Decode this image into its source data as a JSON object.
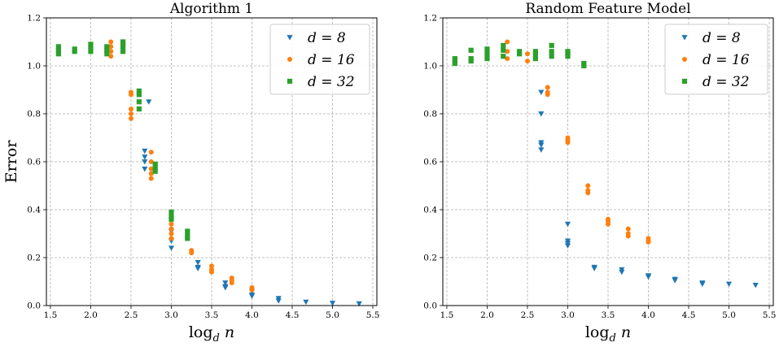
{
  "chart_data": [
    {
      "type": "scatter",
      "title": "Algorithm 1",
      "xlabel": "log_d n",
      "ylabel": "Error",
      "xlim": [
        1.45,
        5.55
      ],
      "ylim": [
        0.0,
        1.2
      ],
      "xticks": [
        "1.5",
        "2.0",
        "2.5",
        "3.0",
        "3.5",
        "4.0",
        "4.5",
        "5.0",
        "5.5"
      ],
      "yticks": [
        "0.0",
        "0.2",
        "0.4",
        "0.6",
        "0.8",
        "1.0",
        "1.2"
      ],
      "grid": true,
      "legend": "top-right",
      "series": [
        {
          "name": "d = 8",
          "legend_text": "d = 8",
          "color": "#1f77b4",
          "marker": "triangle-down",
          "points": [
            [
              2.67,
              0.645
            ],
            [
              2.67,
              0.62
            ],
            [
              2.67,
              0.6
            ],
            [
              2.67,
              0.57
            ],
            [
              2.72,
              0.85
            ],
            [
              3.0,
              0.31
            ],
            [
              3.0,
              0.27
            ],
            [
              3.0,
              0.24
            ],
            [
              3.33,
              0.18
            ],
            [
              3.33,
              0.16
            ],
            [
              3.33,
              0.155
            ],
            [
              3.67,
              0.095
            ],
            [
              3.67,
              0.08
            ],
            [
              3.67,
              0.075
            ],
            [
              4.0,
              0.06
            ],
            [
              4.0,
              0.045
            ],
            [
              4.0,
              0.04
            ],
            [
              4.33,
              0.03
            ],
            [
              4.33,
              0.02
            ],
            [
              4.67,
              0.015
            ],
            [
              5.0,
              0.01
            ],
            [
              5.33,
              0.008
            ]
          ]
        },
        {
          "name": "d = 16",
          "legend_text": "d = 16",
          "color": "#ff7f0e",
          "marker": "circle",
          "points": [
            [
              2.25,
              1.1
            ],
            [
              2.25,
              1.08
            ],
            [
              2.25,
              1.06
            ],
            [
              2.25,
              1.04
            ],
            [
              2.5,
              0.89
            ],
            [
              2.5,
              0.88
            ],
            [
              2.5,
              0.82
            ],
            [
              2.5,
              0.8
            ],
            [
              2.5,
              0.78
            ],
            [
              2.75,
              0.64
            ],
            [
              2.75,
              0.6
            ],
            [
              2.75,
              0.57
            ],
            [
              2.75,
              0.55
            ],
            [
              2.75,
              0.53
            ],
            [
              3.0,
              0.34
            ],
            [
              3.0,
              0.32
            ],
            [
              3.0,
              0.3
            ],
            [
              3.0,
              0.28
            ],
            [
              3.25,
              0.23
            ],
            [
              3.25,
              0.22
            ],
            [
              3.5,
              0.165
            ],
            [
              3.5,
              0.15
            ],
            [
              3.5,
              0.14
            ],
            [
              3.75,
              0.115
            ],
            [
              3.75,
              0.105
            ],
            [
              3.75,
              0.095
            ],
            [
              4.0,
              0.075
            ],
            [
              4.0,
              0.065
            ]
          ]
        },
        {
          "name": "d = 32",
          "legend_text": "d = 32",
          "color": "#2ca02c",
          "marker": "square",
          "points": [
            [
              1.6,
              1.08
            ],
            [
              1.6,
              1.065
            ],
            [
              1.6,
              1.05
            ],
            [
              1.8,
              1.07
            ],
            [
              1.8,
              1.06
            ],
            [
              2.0,
              1.09
            ],
            [
              2.0,
              1.075
            ],
            [
              2.0,
              1.06
            ],
            [
              2.2,
              1.08
            ],
            [
              2.2,
              1.065
            ],
            [
              2.2,
              1.05
            ],
            [
              2.4,
              1.1
            ],
            [
              2.4,
              1.09
            ],
            [
              2.4,
              1.075
            ],
            [
              2.4,
              1.06
            ],
            [
              2.6,
              0.895
            ],
            [
              2.6,
              0.88
            ],
            [
              2.6,
              0.85
            ],
            [
              2.6,
              0.82
            ],
            [
              2.8,
              0.59
            ],
            [
              2.8,
              0.575
            ],
            [
              2.8,
              0.56
            ],
            [
              3.0,
              0.39
            ],
            [
              3.0,
              0.37
            ],
            [
              3.0,
              0.36
            ],
            [
              3.2,
              0.31
            ],
            [
              3.2,
              0.29
            ],
            [
              3.2,
              0.28
            ]
          ]
        }
      ]
    },
    {
      "type": "scatter",
      "title": "Random Feature Model",
      "xlabel": "log_d n",
      "ylabel": "",
      "xlim": [
        1.45,
        5.55
      ],
      "ylim": [
        0.0,
        1.2
      ],
      "xticks": [
        "1.5",
        "2.0",
        "2.5",
        "3.0",
        "3.5",
        "4.0",
        "4.5",
        "5.0",
        "5.5"
      ],
      "yticks": [
        "0.0",
        "0.2",
        "0.4",
        "0.6",
        "0.8",
        "1.0",
        "1.2"
      ],
      "grid": true,
      "legend": "top-right",
      "series": [
        {
          "name": "d = 8",
          "legend_text": "d = 8",
          "color": "#1f77b4",
          "marker": "triangle-down",
          "points": [
            [
              2.67,
              0.89
            ],
            [
              2.67,
              0.8
            ],
            [
              2.67,
              0.68
            ],
            [
              2.67,
              0.67
            ],
            [
              2.67,
              0.65
            ],
            [
              3.0,
              0.34
            ],
            [
              3.0,
              0.27
            ],
            [
              3.0,
              0.26
            ],
            [
              3.0,
              0.25
            ],
            [
              3.33,
              0.16
            ],
            [
              3.33,
              0.155
            ],
            [
              3.67,
              0.15
            ],
            [
              3.67,
              0.14
            ],
            [
              4.0,
              0.125
            ],
            [
              4.0,
              0.12
            ],
            [
              4.33,
              0.11
            ],
            [
              4.33,
              0.105
            ],
            [
              4.67,
              0.095
            ],
            [
              4.67,
              0.09
            ],
            [
              5.0,
              0.09
            ],
            [
              5.33,
              0.085
            ]
          ]
        },
        {
          "name": "d = 16",
          "legend_text": "d = 16",
          "color": "#ff7f0e",
          "marker": "circle",
          "points": [
            [
              2.25,
              1.1
            ],
            [
              2.25,
              1.06
            ],
            [
              2.25,
              1.03
            ],
            [
              2.5,
              1.05
            ],
            [
              2.5,
              1.02
            ],
            [
              2.75,
              0.91
            ],
            [
              2.75,
              0.89
            ],
            [
              2.75,
              0.88
            ],
            [
              3.0,
              0.7
            ],
            [
              3.0,
              0.69
            ],
            [
              3.0,
              0.68
            ],
            [
              3.25,
              0.5
            ],
            [
              3.25,
              0.48
            ],
            [
              3.25,
              0.47
            ],
            [
              3.5,
              0.36
            ],
            [
              3.5,
              0.35
            ],
            [
              3.5,
              0.34
            ],
            [
              3.75,
              0.32
            ],
            [
              3.75,
              0.3
            ],
            [
              3.75,
              0.29
            ],
            [
              4.0,
              0.28
            ],
            [
              4.0,
              0.27
            ],
            [
              4.0,
              0.265
            ]
          ]
        },
        {
          "name": "d = 32",
          "legend_text": "d = 32",
          "color": "#2ca02c",
          "marker": "square",
          "points": [
            [
              1.6,
              1.03
            ],
            [
              1.6,
              1.02
            ],
            [
              1.6,
              1.01
            ],
            [
              1.8,
              1.065
            ],
            [
              1.8,
              1.03
            ],
            [
              1.8,
              1.02
            ],
            [
              2.0,
              1.07
            ],
            [
              2.0,
              1.05
            ],
            [
              2.0,
              1.03
            ],
            [
              2.2,
              1.085
            ],
            [
              2.2,
              1.065
            ],
            [
              2.2,
              1.04
            ],
            [
              2.4,
              1.06
            ],
            [
              2.4,
              1.05
            ],
            [
              2.6,
              1.06
            ],
            [
              2.6,
              1.045
            ],
            [
              2.6,
              1.03
            ],
            [
              2.8,
              1.085
            ],
            [
              2.8,
              1.06
            ],
            [
              2.8,
              1.04
            ],
            [
              3.0,
              1.06
            ],
            [
              3.0,
              1.05
            ],
            [
              3.0,
              1.04
            ],
            [
              3.2,
              1.01
            ],
            [
              3.2,
              1.0
            ]
          ]
        }
      ]
    }
  ]
}
